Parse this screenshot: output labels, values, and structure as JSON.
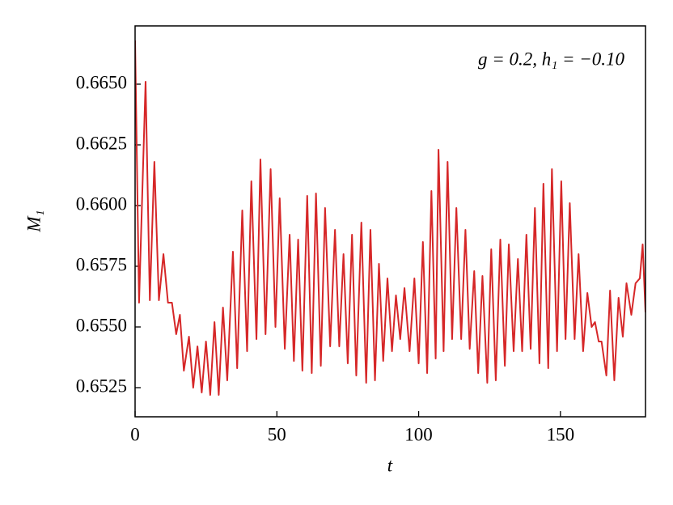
{
  "chart_data": {
    "type": "line",
    "annotation": "g = 0.2, h₁ = −0.10",
    "x_label": "t",
    "y_label": "M₁",
    "xlim": [
      0,
      180
    ],
    "xticks": [
      0,
      50,
      100,
      150
    ],
    "ylim": [
      0.6513,
      0.6674
    ],
    "yticks": [
      0.6525,
      {
        "value": 0.655,
        "label": "0.6550"
      },
      0.6575,
      {
        "value": 0.66,
        "label": "0.6600"
      },
      0.6625,
      {
        "value": 0.665,
        "label": "0.6650"
      }
    ],
    "series": [
      {
        "color": "#d62728",
        "x": [
          0,
          1.4,
          3.7,
          5.2,
          6.8,
          8.4,
          10,
          11.6,
          13,
          14.5,
          15.8,
          17.2,
          19,
          20.5,
          22,
          23.5,
          25,
          26.5,
          28,
          29.5,
          31,
          32.5,
          34.5,
          36,
          37.8,
          39.5,
          41,
          42.8,
          44.2,
          46,
          47.8,
          49.5,
          51,
          52.8,
          54.5,
          56,
          57.5,
          59,
          60.7,
          62.3,
          63.8,
          65.5,
          67,
          68.8,
          70.5,
          72,
          73.5,
          75,
          76.5,
          78,
          79.8,
          81.5,
          83,
          84.6,
          86,
          87.5,
          89,
          90.6,
          92,
          93.5,
          95,
          96.8,
          98.5,
          100,
          101.5,
          103,
          104.5,
          106,
          107,
          108.8,
          110.2,
          111.8,
          113.3,
          115,
          116.5,
          118,
          119.6,
          121,
          122.5,
          124.2,
          125.6,
          127.2,
          128.8,
          130.4,
          131.8,
          133.5,
          135,
          136.5,
          138,
          139.5,
          141,
          142.6,
          144,
          145.7,
          147,
          148.8,
          150.3,
          151.8,
          153.3,
          155,
          156.4,
          158,
          159.5,
          161,
          162.2,
          163.5,
          164.5,
          166.2,
          167.5,
          169,
          170.5,
          172,
          173.3,
          175,
          176.5,
          178,
          179,
          180
        ],
        "values": [
          0.6668,
          0.656,
          0.6651,
          0.6561,
          0.6618,
          0.6561,
          0.658,
          0.656,
          0.656,
          0.6547,
          0.6555,
          0.6532,
          0.6546,
          0.6525,
          0.6542,
          0.6523,
          0.6544,
          0.6522,
          0.6552,
          0.6522,
          0.6558,
          0.6528,
          0.6581,
          0.6533,
          0.6598,
          0.654,
          0.661,
          0.6545,
          0.6619,
          0.6547,
          0.6615,
          0.655,
          0.6603,
          0.6541,
          0.6588,
          0.6536,
          0.6586,
          0.6532,
          0.6604,
          0.6531,
          0.6605,
          0.6534,
          0.6599,
          0.6542,
          0.659,
          0.6542,
          0.658,
          0.6535,
          0.6588,
          0.653,
          0.6593,
          0.6527,
          0.659,
          0.6528,
          0.6576,
          0.6536,
          0.657,
          0.654,
          0.6563,
          0.6545,
          0.6566,
          0.654,
          0.657,
          0.6535,
          0.6585,
          0.6531,
          0.6606,
          0.6537,
          0.6623,
          0.654,
          0.6618,
          0.6545,
          0.6599,
          0.6545,
          0.659,
          0.6541,
          0.6573,
          0.6531,
          0.6571,
          0.6527,
          0.6582,
          0.6528,
          0.6586,
          0.6534,
          0.6584,
          0.654,
          0.6578,
          0.654,
          0.6588,
          0.6541,
          0.6599,
          0.6535,
          0.6609,
          0.6533,
          0.6615,
          0.654,
          0.661,
          0.6545,
          0.6601,
          0.6545,
          0.658,
          0.654,
          0.6564,
          0.655,
          0.6552,
          0.6544,
          0.6544,
          0.653,
          0.6565,
          0.6528,
          0.6562,
          0.6546,
          0.6568,
          0.6555,
          0.6568,
          0.657,
          0.6584,
          0.6556
        ]
      }
    ]
  }
}
